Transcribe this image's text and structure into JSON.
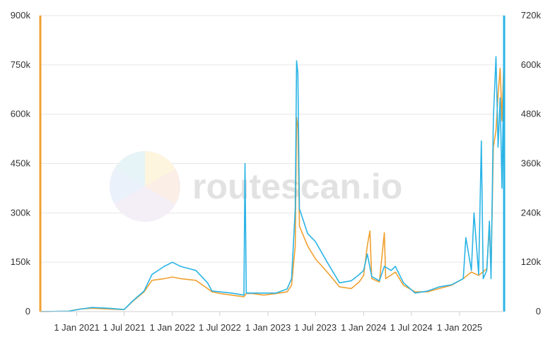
{
  "watermark": {
    "text": "routescan.io"
  },
  "chart_data": {
    "type": "line",
    "grid": true,
    "x_range": [
      "2020-08-15",
      "2025-06-20"
    ],
    "x_ticks": [
      "1 Jan 2021",
      "1 Jul 2021",
      "1 Jan 2022",
      "1 Jul 2022",
      "1 Jan 2023",
      "1 Jul 2023",
      "1 Jan 2024",
      "1 Jul 2024",
      "1 Jan 2025"
    ],
    "x_tick_dates": [
      "2021-01-01",
      "2021-07-01",
      "2022-01-01",
      "2022-07-01",
      "2023-01-01",
      "2023-07-01",
      "2024-01-01",
      "2024-07-01",
      "2025-01-01"
    ],
    "y_left": {
      "range": [
        0,
        900000
      ],
      "ticks": [
        "0",
        "150k",
        "300k",
        "450k",
        "600k",
        "750k",
        "900k"
      ],
      "color": "#f0a030"
    },
    "y_right": {
      "range": [
        0,
        720000
      ],
      "ticks": [
        "0",
        "120k",
        "240k",
        "360k",
        "480k",
        "600k",
        "720k"
      ],
      "color": "#2ab4e6"
    },
    "series": [
      {
        "axis": "left",
        "color": "#f0a030",
        "points": [
          [
            "2020-08-15",
            0
          ],
          [
            "2020-12-01",
            1000
          ],
          [
            "2021-01-15",
            8000
          ],
          [
            "2021-03-01",
            10000
          ],
          [
            "2021-05-01",
            8000
          ],
          [
            "2021-07-01",
            6000
          ],
          [
            "2021-08-01",
            30000
          ],
          [
            "2021-09-15",
            60000
          ],
          [
            "2021-10-15",
            95000
          ],
          [
            "2021-12-01",
            100000
          ],
          [
            "2022-01-01",
            105000
          ],
          [
            "2022-02-01",
            100000
          ],
          [
            "2022-04-01",
            95000
          ],
          [
            "2022-05-15",
            70000
          ],
          [
            "2022-06-01",
            60000
          ],
          [
            "2022-07-01",
            55000
          ],
          [
            "2022-08-15",
            50000
          ],
          [
            "2022-10-01",
            45000
          ],
          [
            "2022-10-10",
            55000
          ],
          [
            "2022-11-01",
            55000
          ],
          [
            "2022-12-15",
            50000
          ],
          [
            "2023-02-01",
            55000
          ],
          [
            "2023-03-15",
            60000
          ],
          [
            "2023-04-01",
            80000
          ],
          [
            "2023-04-15",
            200000
          ],
          [
            "2023-04-20",
            590000
          ],
          [
            "2023-04-25",
            560000
          ],
          [
            "2023-05-01",
            260000
          ],
          [
            "2023-06-01",
            200000
          ],
          [
            "2023-07-01",
            160000
          ],
          [
            "2023-08-15",
            120000
          ],
          [
            "2023-10-01",
            75000
          ],
          [
            "2023-11-15",
            70000
          ],
          [
            "2023-12-15",
            90000
          ],
          [
            "2024-01-01",
            110000
          ],
          [
            "2024-01-15",
            200000
          ],
          [
            "2024-01-25",
            245000
          ],
          [
            "2024-02-01",
            100000
          ],
          [
            "2024-03-01",
            90000
          ],
          [
            "2024-03-20",
            240000
          ],
          [
            "2024-03-25",
            100000
          ],
          [
            "2024-05-01",
            120000
          ],
          [
            "2024-06-01",
            80000
          ],
          [
            "2024-07-15",
            60000
          ],
          [
            "2024-09-01",
            60000
          ],
          [
            "2024-10-15",
            70000
          ],
          [
            "2024-12-01",
            80000
          ],
          [
            "2025-01-15",
            100000
          ],
          [
            "2025-02-15",
            120000
          ],
          [
            "2025-03-15",
            110000
          ],
          [
            "2025-04-15",
            130000
          ],
          [
            "2025-04-25",
            260000
          ],
          [
            "2025-05-01",
            120000
          ],
          [
            "2025-05-10",
            500000
          ],
          [
            "2025-05-20",
            550000
          ],
          [
            "2025-05-28",
            660000
          ],
          [
            "2025-06-05",
            740000
          ],
          [
            "2025-06-12",
            580000
          ],
          [
            "2025-06-18",
            740000
          ]
        ]
      },
      {
        "axis": "right",
        "color": "#2ab4e6",
        "points": [
          [
            "2020-08-15",
            0
          ],
          [
            "2020-12-01",
            1000
          ],
          [
            "2021-01-15",
            6000
          ],
          [
            "2021-03-01",
            10000
          ],
          [
            "2021-05-01",
            8000
          ],
          [
            "2021-07-01",
            5000
          ],
          [
            "2021-08-01",
            25000
          ],
          [
            "2021-09-15",
            50000
          ],
          [
            "2021-10-15",
            90000
          ],
          [
            "2021-12-01",
            110000
          ],
          [
            "2022-01-01",
            120000
          ],
          [
            "2022-02-01",
            110000
          ],
          [
            "2022-04-01",
            100000
          ],
          [
            "2022-05-15",
            70000
          ],
          [
            "2022-06-01",
            50000
          ],
          [
            "2022-07-01",
            48000
          ],
          [
            "2022-08-15",
            45000
          ],
          [
            "2022-10-01",
            40000
          ],
          [
            "2022-10-05",
            360000
          ],
          [
            "2022-10-10",
            45000
          ],
          [
            "2022-11-01",
            45000
          ],
          [
            "2022-12-15",
            45000
          ],
          [
            "2023-02-01",
            45000
          ],
          [
            "2023-03-15",
            55000
          ],
          [
            "2023-04-01",
            80000
          ],
          [
            "2023-04-15",
            250000
          ],
          [
            "2023-04-20",
            610000
          ],
          [
            "2023-04-25",
            580000
          ],
          [
            "2023-05-01",
            250000
          ],
          [
            "2023-06-01",
            190000
          ],
          [
            "2023-07-01",
            170000
          ],
          [
            "2023-08-15",
            120000
          ],
          [
            "2023-10-01",
            70000
          ],
          [
            "2023-11-15",
            75000
          ],
          [
            "2023-12-15",
            90000
          ],
          [
            "2024-01-01",
            100000
          ],
          [
            "2024-01-15",
            140000
          ],
          [
            "2024-02-01",
            85000
          ],
          [
            "2024-03-01",
            75000
          ],
          [
            "2024-03-20",
            110000
          ],
          [
            "2024-04-15",
            100000
          ],
          [
            "2024-05-01",
            110000
          ],
          [
            "2024-06-01",
            70000
          ],
          [
            "2024-07-15",
            45000
          ],
          [
            "2024-09-01",
            50000
          ],
          [
            "2024-10-15",
            60000
          ],
          [
            "2024-12-01",
            65000
          ],
          [
            "2025-01-15",
            80000
          ],
          [
            "2025-01-25",
            180000
          ],
          [
            "2025-02-15",
            100000
          ],
          [
            "2025-02-25",
            240000
          ],
          [
            "2025-03-15",
            90000
          ],
          [
            "2025-03-25",
            415000
          ],
          [
            "2025-04-01",
            80000
          ],
          [
            "2025-04-15",
            100000
          ],
          [
            "2025-04-25",
            220000
          ],
          [
            "2025-05-01",
            80000
          ],
          [
            "2025-05-10",
            470000
          ],
          [
            "2025-05-20",
            620000
          ],
          [
            "2025-05-28",
            400000
          ],
          [
            "2025-06-05",
            520000
          ],
          [
            "2025-06-12",
            300000
          ],
          [
            "2025-06-18",
            560000
          ]
        ]
      }
    ]
  }
}
